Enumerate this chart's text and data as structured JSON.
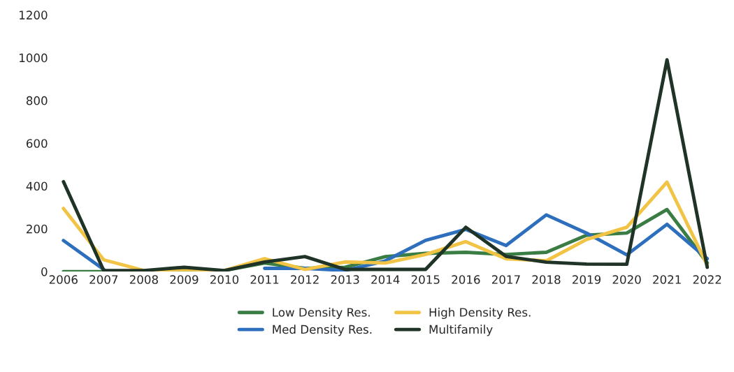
{
  "chart_data": {
    "type": "line",
    "categories": [
      "2006",
      "2007",
      "2008",
      "2009",
      "2010",
      "2011",
      "2012",
      "2013",
      "2014",
      "2015",
      "2016",
      "2017",
      "2018",
      "2019",
      "2020",
      "2021",
      "2022"
    ],
    "series": [
      {
        "name": "Low Density Res.",
        "color": "#3a7d44",
        "values": [
          0,
          0,
          0,
          5,
          5,
          40,
          15,
          20,
          70,
          85,
          90,
          80,
          90,
          170,
          180,
          290,
          40
        ]
      },
      {
        "name": "Med Density Res.",
        "color": "#2e6fbd",
        "values": [
          145,
          10,
          null,
          null,
          null,
          15,
          15,
          5,
          50,
          146,
          197,
          122,
          265,
          180,
          78,
          221,
          60
        ]
      },
      {
        "name": "High Density Res.",
        "color": "#f2c446",
        "values": [
          295,
          55,
          5,
          10,
          5,
          60,
          10,
          45,
          40,
          80,
          140,
          60,
          50,
          150,
          207,
          418,
          30
        ]
      },
      {
        "name": "Multifamily",
        "color": "#1f3326",
        "values": [
          420,
          5,
          5,
          20,
          5,
          45,
          70,
          10,
          10,
          10,
          207,
          71,
          44,
          35,
          34,
          990,
          20
        ]
      }
    ],
    "ylim": [
      0,
      1200
    ],
    "yticks": [
      0,
      200,
      400,
      600,
      800,
      1000,
      1200
    ],
    "grid": false,
    "legend": "bottom"
  }
}
